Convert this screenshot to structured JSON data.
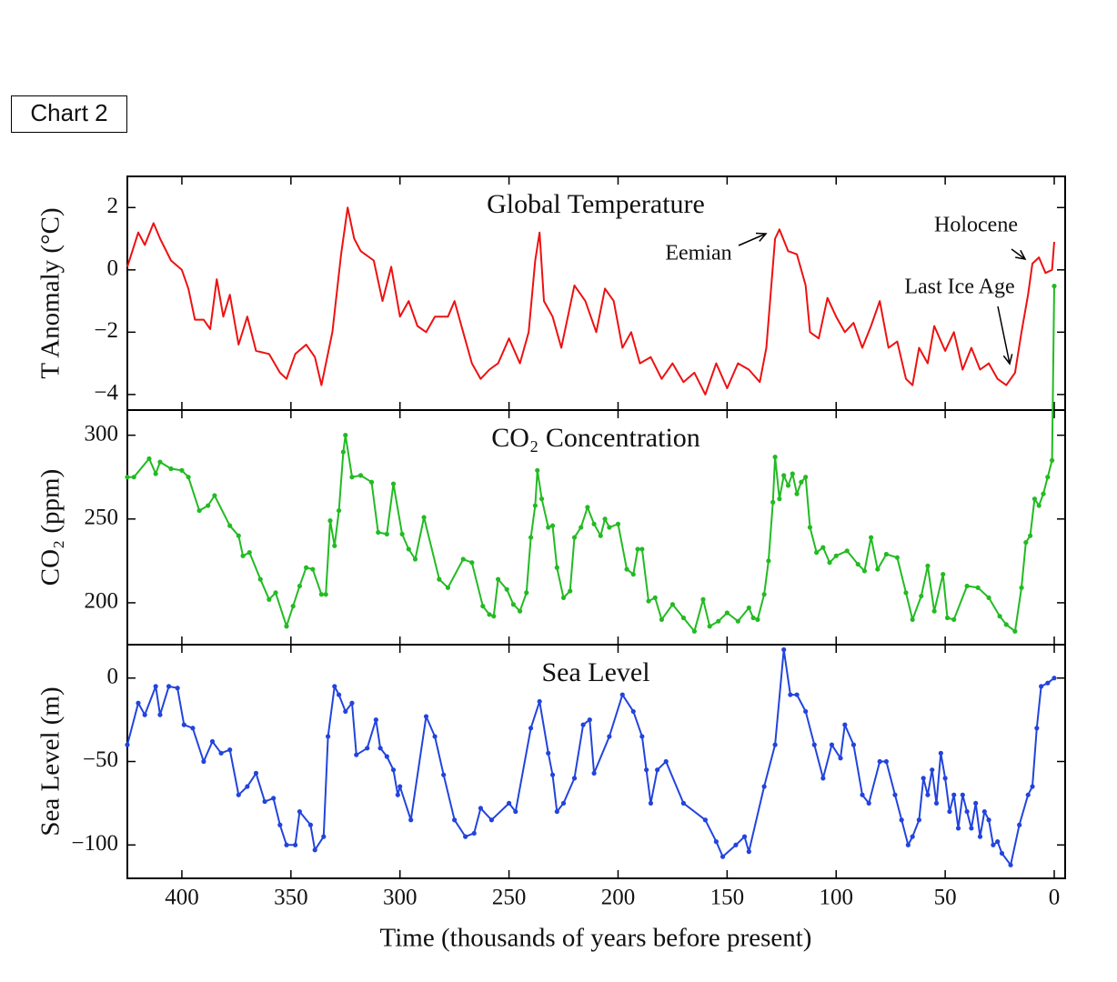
{
  "label": "Chart 2",
  "chart_data": [
    {
      "type": "line",
      "title": "Global Temperature",
      "ylabel": "T Anomaly (°C)",
      "ylim": [
        -4.5,
        3
      ],
      "yticks": [
        {
          "value": -4,
          "label": "−4"
        },
        {
          "value": -2,
          "label": "−2"
        },
        0,
        2
      ],
      "annotations": [
        "Eemian",
        "Holocene",
        "Last Ice Age"
      ],
      "series": [
        {
          "name": "Global Temperature",
          "color": "#ee1111",
          "x": [
            425,
            420,
            417,
            413,
            410,
            405,
            400,
            397,
            394,
            390,
            387,
            384,
            381,
            378,
            374,
            370,
            366,
            360,
            355,
            352,
            348,
            343,
            339,
            336,
            331,
            327,
            324,
            321,
            318,
            312,
            308,
            304,
            300,
            296,
            292,
            288,
            284,
            278,
            275,
            271,
            267,
            263,
            259,
            255,
            250,
            245,
            241,
            238,
            236,
            234,
            230,
            226,
            220,
            215,
            210,
            206,
            202,
            198,
            194,
            190,
            185,
            180,
            175,
            170,
            165,
            160,
            155,
            150,
            145,
            140,
            135,
            132,
            128,
            126,
            122,
            118,
            114,
            112,
            108,
            104,
            100,
            96,
            92,
            88,
            84,
            80,
            76,
            72,
            68,
            65,
            62,
            58,
            55,
            50,
            46,
            42,
            38,
            34,
            30,
            26,
            22,
            18,
            15,
            12,
            10,
            7,
            4,
            1,
            0
          ],
          "values": [
            0.1,
            1.2,
            0.8,
            1.5,
            1.0,
            0.3,
            0.0,
            -0.6,
            -1.6,
            -1.6,
            -1.9,
            -0.3,
            -1.5,
            -0.8,
            -2.4,
            -1.5,
            -2.6,
            -2.7,
            -3.3,
            -3.5,
            -2.7,
            -2.4,
            -2.8,
            -3.7,
            -2.0,
            0.5,
            2.0,
            1.0,
            0.6,
            0.3,
            -1.0,
            0.1,
            -1.5,
            -1.0,
            -1.8,
            -2.0,
            -1.5,
            -1.5,
            -1.0,
            -2.0,
            -3.0,
            -3.5,
            -3.2,
            -3.0,
            -2.2,
            -3.0,
            -2.0,
            0.3,
            1.2,
            -1.0,
            -1.5,
            -2.5,
            -0.5,
            -1.0,
            -2.0,
            -0.6,
            -1.0,
            -2.5,
            -2.0,
            -3.0,
            -2.8,
            -3.5,
            -3.0,
            -3.6,
            -3.3,
            -4.0,
            -3.0,
            -3.8,
            -3.0,
            -3.2,
            -3.6,
            -2.5,
            1.0,
            1.3,
            0.6,
            0.5,
            -0.5,
            -2.0,
            -2.2,
            -0.9,
            -1.5,
            -2.0,
            -1.7,
            -2.5,
            -1.8,
            -1.0,
            -2.5,
            -2.3,
            -3.5,
            -3.7,
            -2.5,
            -3.0,
            -1.8,
            -2.6,
            -2.0,
            -3.2,
            -2.5,
            -3.2,
            -3.0,
            -3.5,
            -3.7,
            -3.3,
            -2.0,
            -0.8,
            0.2,
            0.4,
            -0.1,
            0.0,
            0.9
          ]
        }
      ]
    },
    {
      "type": "line",
      "title": "CO₂ Concentration",
      "ylabel": "CO₂ (ppm)",
      "ylim": [
        175,
        315
      ],
      "yticks": [
        200,
        250,
        300
      ],
      "markers": true,
      "series": [
        {
          "name": "CO₂ Concentration",
          "color": "#22bb22",
          "x": [
            425,
            422,
            415,
            412,
            410,
            405,
            400,
            397,
            392,
            388,
            385,
            378,
            374,
            372,
            369,
            364,
            360,
            357,
            352,
            349,
            346,
            343,
            340,
            336,
            334,
            332,
            330,
            328,
            326,
            325,
            322,
            318,
            313,
            310,
            306,
            303,
            299,
            296,
            293,
            289,
            282,
            278,
            271,
            267,
            262,
            259,
            257,
            255,
            251,
            248,
            245,
            242,
            240,
            238,
            237,
            235,
            232,
            230,
            228,
            225,
            222,
            220,
            217,
            214,
            211,
            208,
            206,
            204,
            200,
            196,
            193,
            191,
            189,
            186,
            183,
            180,
            175,
            170,
            165,
            161,
            158,
            154,
            150,
            145,
            140,
            138,
            136,
            133,
            131,
            129,
            128,
            126,
            124,
            122,
            120,
            118,
            116,
            114,
            112,
            109,
            106,
            103,
            100,
            95,
            90,
            87,
            84,
            81,
            77,
            72,
            68,
            65,
            61,
            58,
            55,
            51,
            49,
            46,
            40,
            35,
            30,
            25,
            22,
            18,
            15,
            13,
            11,
            9,
            7,
            5,
            3,
            1,
            0
          ],
          "values": [
            275,
            275,
            286,
            277,
            284,
            280,
            279,
            275,
            255,
            258,
            264,
            246,
            240,
            228,
            230,
            214,
            202,
            206,
            186,
            198,
            210,
            221,
            220,
            205,
            205,
            249,
            234,
            255,
            290,
            300,
            275,
            276,
            272,
            242,
            241,
            271,
            241,
            232,
            226,
            251,
            214,
            209,
            226,
            224,
            198,
            193,
            192,
            214,
            208,
            199,
            195,
            206,
            239,
            258,
            279,
            262,
            245,
            246,
            221,
            203,
            207,
            239,
            245,
            257,
            247,
            240,
            250,
            245,
            247,
            220,
            217,
            232,
            232,
            201,
            203,
            190,
            199,
            191,
            183,
            202,
            186,
            189,
            194,
            189,
            197,
            191,
            190,
            205,
            225,
            260,
            287,
            262,
            276,
            270,
            277,
            265,
            272,
            275,
            245,
            230,
            233,
            224,
            228,
            231,
            223,
            219,
            239,
            220,
            229,
            227,
            206,
            190,
            204,
            222,
            195,
            217,
            191,
            190,
            210,
            209,
            203,
            192,
            187,
            183,
            209,
            236,
            240,
            262,
            258,
            265,
            275,
            285,
            389
          ]
        }
      ]
    },
    {
      "type": "line",
      "title": "Sea Level",
      "ylabel": "Sea Level (m)",
      "ylim": [
        -120,
        20
      ],
      "yticks": [
        {
          "value": -100,
          "label": "−100"
        },
        {
          "value": -50,
          "label": "−50"
        },
        0
      ],
      "markers": true,
      "xlabel": "Time (thousands of years before present)",
      "xlim": [
        425,
        -5
      ],
      "xticks": [
        400,
        350,
        300,
        250,
        200,
        150,
        100,
        50,
        0
      ],
      "series": [
        {
          "name": "Sea Level",
          "color": "#2244dd",
          "x": [
            425,
            420,
            417,
            412,
            410,
            406,
            402,
            399,
            395,
            390,
            386,
            382,
            378,
            374,
            370,
            366,
            362,
            358,
            355,
            352,
            348,
            346,
            341,
            339,
            335,
            333,
            330,
            328,
            325,
            322,
            320,
            315,
            311,
            309,
            306,
            303,
            301,
            300,
            295,
            288,
            284,
            280,
            275,
            270,
            266,
            263,
            258,
            250,
            247,
            240,
            236,
            232,
            230,
            228,
            225,
            220,
            216,
            213,
            211,
            204,
            198,
            193,
            189,
            187,
            185,
            182,
            178,
            170,
            160,
            155,
            152,
            146,
            142,
            140,
            133,
            128,
            124,
            121,
            118,
            114,
            110,
            106,
            102,
            98,
            96,
            92,
            88,
            85,
            80,
            77,
            73,
            70,
            67,
            65,
            62,
            60,
            58,
            56,
            54,
            52,
            50,
            48,
            46,
            44,
            42,
            40,
            38,
            36,
            34,
            32,
            30,
            28,
            26,
            24,
            20,
            16,
            12,
            10,
            8,
            6,
            3,
            0
          ],
          "values": [
            -40,
            -15,
            -22,
            -5,
            -22,
            -5,
            -6,
            -28,
            -30,
            -50,
            -38,
            -45,
            -43,
            -70,
            -65,
            -57,
            -74,
            -72,
            -88,
            -100,
            -100,
            -80,
            -88,
            -103,
            -95,
            -35,
            -5,
            -10,
            -20,
            -15,
            -46,
            -42,
            -25,
            -42,
            -47,
            -55,
            -70,
            -65,
            -85,
            -23,
            -35,
            -58,
            -85,
            -95,
            -93,
            -78,
            -85,
            -75,
            -80,
            -30,
            -14,
            -45,
            -58,
            -80,
            -75,
            -60,
            -28,
            -25,
            -57,
            -35,
            -10,
            -20,
            -35,
            -55,
            -75,
            -55,
            -50,
            -75,
            -85,
            -98,
            -107,
            -100,
            -95,
            -104,
            -65,
            -40,
            17,
            -10,
            -10,
            -20,
            -40,
            -60,
            -40,
            -48,
            -28,
            -40,
            -70,
            -75,
            -50,
            -50,
            -70,
            -85,
            -100,
            -95,
            -85,
            -60,
            -70,
            -55,
            -75,
            -45,
            -60,
            -80,
            -70,
            -90,
            -70,
            -80,
            -90,
            -75,
            -95,
            -80,
            -85,
            -100,
            -98,
            -105,
            -112,
            -88,
            -70,
            -65,
            -30,
            -5,
            -3,
            0
          ]
        }
      ]
    }
  ]
}
